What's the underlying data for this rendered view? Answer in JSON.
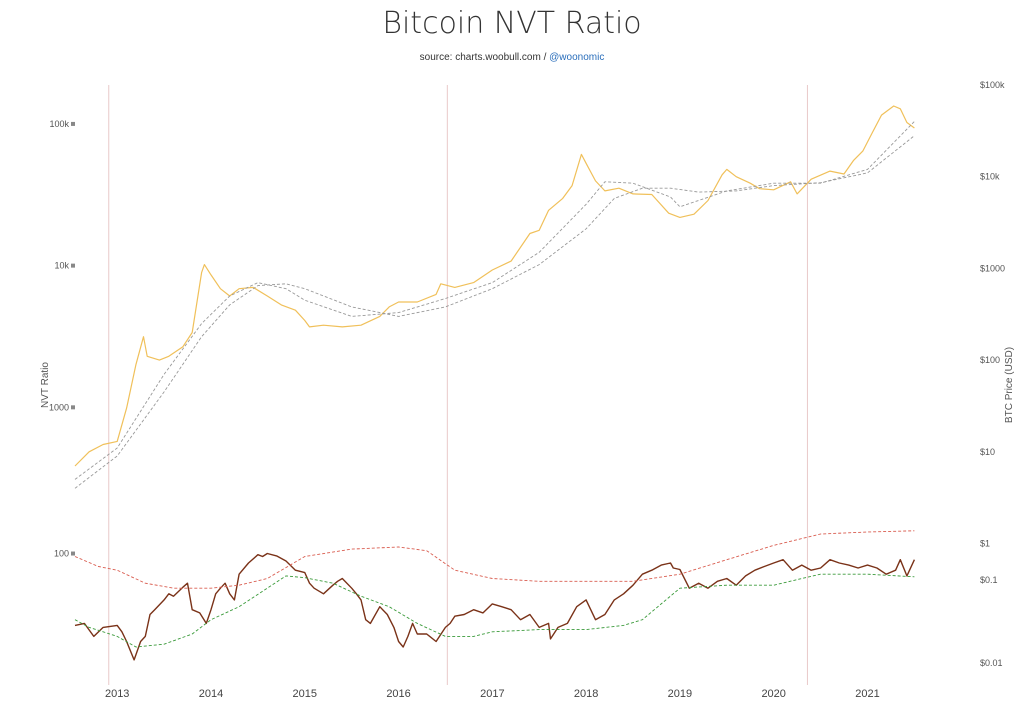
{
  "title": "Bitcoin NVT Ratio",
  "subtitle": {
    "source_text": "source: charts.woobull.com / ",
    "handle": "@woonomic"
  },
  "chart_data": [
    {
      "type": "line",
      "name": "price-panel",
      "ylabel": "NVT Ratio",
      "ylabel_right": "BTC Price (USD)",
      "left_ticks": [
        "1000",
        "10k",
        "100k"
      ],
      "right_ticks": [
        "$1",
        "$10",
        "$100",
        "$1000",
        "$10k",
        "$100k"
      ],
      "x_ticks": [
        "2013",
        "2014",
        "2015",
        "2016",
        "2017",
        "2018",
        "2019",
        "2020",
        "2021"
      ],
      "x_range": [
        2012.55,
        2021.72
      ],
      "yscale": "log",
      "ylim_left": [
        500,
        160000
      ],
      "ylim_right": [
        0.4,
        100000
      ],
      "halving_dates": [
        2012.91,
        2016.52,
        2020.36
      ],
      "series": [
        {
          "color": "#f0c05a",
          "axis": "right",
          "x": [
            2012.55,
            2012.7,
            2012.85,
            2013.0,
            2013.1,
            2013.2,
            2013.28,
            2013.32,
            2013.45,
            2013.55,
            2013.7,
            2013.8,
            2013.9,
            2013.93,
            2014.0,
            2014.1,
            2014.2,
            2014.3,
            2014.45,
            2014.6,
            2014.75,
            2014.9,
            2015.0,
            2015.05,
            2015.2,
            2015.4,
            2015.6,
            2015.8,
            2015.9,
            2016.0,
            2016.2,
            2016.4,
            2016.45,
            2016.6,
            2016.8,
            2017.0,
            2017.2,
            2017.4,
            2017.5,
            2017.6,
            2017.75,
            2017.85,
            2017.95,
            2018.0,
            2018.1,
            2018.2,
            2018.35,
            2018.5,
            2018.7,
            2018.88,
            2019.0,
            2019.15,
            2019.3,
            2019.45,
            2019.5,
            2019.6,
            2019.75,
            2019.85,
            2020.0,
            2020.18,
            2020.25,
            2020.4,
            2020.6,
            2020.75,
            2020.85,
            2020.95,
            2021.05,
            2021.15,
            2021.28,
            2021.35,
            2021.42,
            2021.5
          ],
          "y": [
            7,
            10,
            12,
            13,
            30,
            90,
            180,
            110,
            100,
            110,
            140,
            200,
            900,
            1100,
            850,
            600,
            500,
            600,
            620,
            500,
            400,
            350,
            270,
            230,
            240,
            230,
            240,
            300,
            380,
            430,
            430,
            520,
            680,
            620,
            700,
            960,
            1200,
            2400,
            2600,
            4300,
            5800,
            8000,
            17500,
            14000,
            9000,
            7000,
            7500,
            6500,
            6400,
            4000,
            3600,
            3900,
            5500,
            10500,
            12000,
            10000,
            8500,
            7400,
            7200,
            8800,
            6500,
            9400,
            11500,
            10700,
            15000,
            19000,
            30000,
            47000,
            59000,
            55000,
            39000,
            34000
          ]
        },
        {
          "color": "#999999",
          "axis": "right",
          "dashed": true,
          "x": [
            2012.55,
            2013.0,
            2013.5,
            2013.9,
            2014.2,
            2014.5,
            2014.8,
            2015.0,
            2015.5,
            2016.0,
            2016.5,
            2017.0,
            2017.5,
            2018.0,
            2018.2,
            2018.5,
            2018.9,
            2019.0,
            2019.5,
            2020.0,
            2020.5,
            2021.0,
            2021.5
          ],
          "y": [
            5,
            11,
            70,
            250,
            500,
            700,
            600,
            450,
            300,
            330,
            470,
            700,
            1500,
            5000,
            8800,
            8500,
            6000,
            4700,
            7000,
            8500,
            8500,
            12000,
            40000
          ]
        },
        {
          "color": "#999999",
          "axis": "right",
          "dashed": true,
          "x": [
            2012.55,
            2013.0,
            2013.5,
            2013.9,
            2014.2,
            2014.5,
            2014.8,
            2015.0,
            2015.5,
            2016.0,
            2016.5,
            2017.0,
            2017.5,
            2018.0,
            2018.3,
            2018.6,
            2018.9,
            2019.2,
            2019.6,
            2020.0,
            2020.5,
            2021.0,
            2021.5
          ],
          "y": [
            4,
            9,
            45,
            180,
            400,
            650,
            680,
            600,
            380,
            300,
            380,
            600,
            1100,
            2700,
            5800,
            7500,
            7500,
            6800,
            7000,
            8000,
            8600,
            11000,
            28000
          ]
        }
      ]
    },
    {
      "type": "line",
      "name": "nvt-panel",
      "left_ticks": [
        "100"
      ],
      "right_ticks": [
        "$0.1",
        "$0.01"
      ],
      "x_range": [
        2012.55,
        2021.72
      ],
      "yscale": "log",
      "ylim_left": [
        13,
        110
      ],
      "series": [
        {
          "color": "#7a3218",
          "x": [
            2012.55,
            2012.65,
            2012.75,
            2012.85,
            2013.0,
            2013.05,
            2013.1,
            2013.18,
            2013.25,
            2013.3,
            2013.35,
            2013.4,
            2013.5,
            2013.55,
            2013.6,
            2013.7,
            2013.75,
            2013.8,
            2013.88,
            2013.95,
            2014.0,
            2014.05,
            2014.1,
            2014.15,
            2014.2,
            2014.25,
            2014.3,
            2014.4,
            2014.5,
            2014.55,
            2014.6,
            2014.7,
            2014.8,
            2014.9,
            2015.0,
            2015.05,
            2015.1,
            2015.2,
            2015.3,
            2015.35,
            2015.4,
            2015.5,
            2015.55,
            2015.6,
            2015.65,
            2015.7,
            2015.8,
            2015.88,
            2015.95,
            2016.0,
            2016.05,
            2016.1,
            2016.15,
            2016.2,
            2016.3,
            2016.4,
            2016.5,
            2016.55,
            2016.6,
            2016.7,
            2016.8,
            2016.9,
            2017.0,
            2017.1,
            2017.2,
            2017.3,
            2017.4,
            2017.5,
            2017.6,
            2017.62,
            2017.7,
            2017.8,
            2017.9,
            2018.0,
            2018.1,
            2018.2,
            2018.3,
            2018.4,
            2018.5,
            2018.6,
            2018.7,
            2018.8,
            2018.9,
            2018.93,
            2019.0,
            2019.1,
            2019.2,
            2019.3,
            2019.4,
            2019.5,
            2019.6,
            2019.7,
            2019.8,
            2019.9,
            2020.0,
            2020.1,
            2020.2,
            2020.3,
            2020.4,
            2020.5,
            2020.6,
            2020.7,
            2020.8,
            2020.9,
            2021.0,
            2021.1,
            2021.2,
            2021.3,
            2021.35,
            2021.42,
            2021.5
          ],
          "y": [
            29,
            30,
            24,
            28,
            29,
            26,
            22,
            16,
            22,
            24,
            35,
            38,
            45,
            50,
            48,
            56,
            60,
            38,
            36,
            30,
            38,
            50,
            55,
            60,
            50,
            45,
            70,
            85,
            98,
            95,
            100,
            96,
            88,
            75,
            72,
            60,
            55,
            50,
            58,
            62,
            65,
            55,
            50,
            45,
            32,
            30,
            40,
            35,
            28,
            22,
            20,
            24,
            30,
            25,
            25,
            22,
            28,
            30,
            34,
            35,
            38,
            36,
            42,
            40,
            38,
            32,
            35,
            28,
            30,
            23,
            28,
            30,
            40,
            45,
            32,
            35,
            45,
            50,
            58,
            70,
            75,
            82,
            85,
            78,
            76,
            55,
            60,
            55,
            62,
            65,
            58,
            68,
            75,
            80,
            85,
            90,
            75,
            82,
            75,
            78,
            90,
            85,
            82,
            78,
            82,
            78,
            70,
            75,
            90,
            68,
            90
          ]
        },
        {
          "color": "#d95c4f",
          "dashed": true,
          "x": [
            2012.55,
            2012.8,
            2013.0,
            2013.3,
            2013.6,
            2014.0,
            2014.3,
            2014.6,
            2015.0,
            2015.5,
            2016.0,
            2016.3,
            2016.6,
            2017.0,
            2017.5,
            2018.0,
            2018.5,
            2019.0,
            2019.5,
            2020.0,
            2020.5,
            2021.0,
            2021.5
          ],
          "y": [
            95,
            80,
            75,
            60,
            55,
            55,
            58,
            65,
            95,
            108,
            112,
            105,
            75,
            65,
            62,
            62,
            62,
            70,
            90,
            115,
            140,
            145,
            148
          ]
        },
        {
          "color": "#3a9a3a",
          "dashed": true,
          "x": [
            2012.55,
            2012.7,
            2012.85,
            2013.0,
            2013.2,
            2013.5,
            2013.8,
            2014.0,
            2014.3,
            2014.6,
            2014.8,
            2015.0,
            2015.3,
            2015.6,
            2015.9,
            2016.2,
            2016.5,
            2016.8,
            2017.0,
            2017.5,
            2018.0,
            2018.4,
            2018.6,
            2018.8,
            2019.0,
            2019.5,
            2020.0,
            2020.3,
            2020.5,
            2021.0,
            2021.5
          ],
          "y": [
            32,
            28,
            26,
            24,
            20,
            21,
            25,
            32,
            40,
            55,
            68,
            66,
            60,
            48,
            40,
            30,
            24,
            24,
            26,
            27,
            27,
            29,
            32,
            42,
            55,
            58,
            58,
            65,
            70,
            70,
            67
          ]
        }
      ]
    }
  ]
}
